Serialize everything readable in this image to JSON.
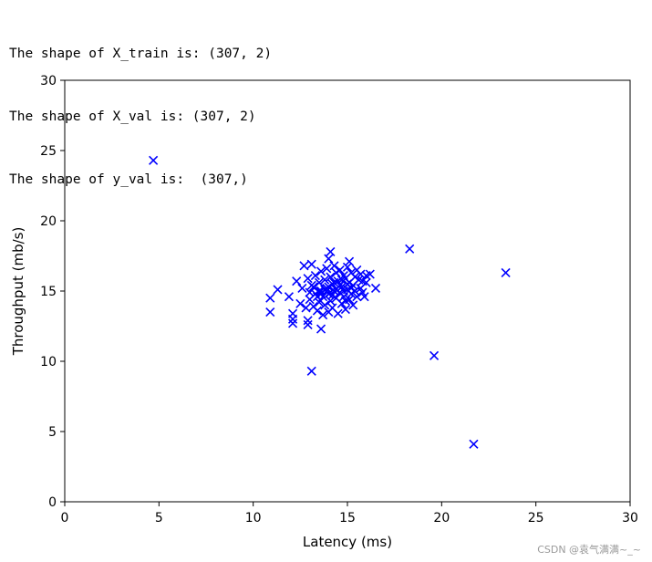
{
  "console": {
    "lines": [
      "The shape of X_train is: (307, 2)",
      "The shape of X_val is: (307, 2)",
      "The shape of y_val is:  (307,)"
    ]
  },
  "watermark": "CSDN @袁气满满~_~",
  "chart_data": {
    "type": "scatter",
    "title": "",
    "xlabel": "Latency (ms)",
    "ylabel": "Throughput (mb/s)",
    "xlim": [
      0,
      30
    ],
    "ylim": [
      0,
      30
    ],
    "xticks": [
      0,
      5,
      10,
      15,
      20,
      25,
      30
    ],
    "yticks": [
      0,
      5,
      10,
      15,
      20,
      25,
      30
    ],
    "grid": false,
    "marker": "x",
    "color": "#0000ff",
    "points": [
      [
        4.7,
        24.3
      ],
      [
        18.3,
        18.0
      ],
      [
        23.4,
        16.3
      ],
      [
        19.6,
        10.4
      ],
      [
        21.7,
        4.1
      ],
      [
        13.1,
        9.3
      ],
      [
        10.9,
        14.5
      ],
      [
        10.9,
        13.5
      ],
      [
        11.3,
        15.1
      ],
      [
        12.1,
        13.4
      ],
      [
        12.1,
        12.7
      ],
      [
        12.1,
        13.0
      ],
      [
        12.9,
        12.6
      ],
      [
        12.9,
        12.9
      ],
      [
        13.6,
        12.3
      ],
      [
        12.7,
        16.8
      ],
      [
        13.1,
        16.9
      ],
      [
        14.1,
        17.8
      ],
      [
        14.0,
        17.3
      ],
      [
        15.1,
        17.1
      ],
      [
        16.5,
        15.2
      ],
      [
        16.2,
        16.2
      ],
      [
        16.0,
        15.6
      ],
      [
        15.9,
        14.6
      ],
      [
        11.9,
        14.6
      ],
      [
        12.3,
        15.7
      ],
      [
        12.5,
        14.1
      ],
      [
        12.6,
        15.2
      ],
      [
        12.8,
        13.8
      ],
      [
        12.9,
        15.9
      ],
      [
        13.0,
        14.4
      ],
      [
        13.1,
        15.4
      ],
      [
        13.2,
        13.9
      ],
      [
        13.3,
        16.1
      ],
      [
        13.3,
        14.8
      ],
      [
        13.4,
        13.6
      ],
      [
        13.5,
        15.6
      ],
      [
        13.5,
        14.2
      ],
      [
        13.6,
        16.4
      ],
      [
        13.6,
        15.0
      ],
      [
        13.7,
        13.3
      ],
      [
        13.7,
        14.6
      ],
      [
        13.8,
        15.8
      ],
      [
        13.8,
        14.0
      ],
      [
        13.9,
        16.6
      ],
      [
        13.9,
        15.2
      ],
      [
        14.0,
        13.5
      ],
      [
        14.0,
        14.8
      ],
      [
        14.1,
        16.0
      ],
      [
        14.1,
        14.3
      ],
      [
        14.2,
        15.5
      ],
      [
        14.2,
        13.8
      ],
      [
        14.3,
        16.8
      ],
      [
        14.3,
        15.0
      ],
      [
        14.4,
        14.5
      ],
      [
        14.4,
        16.3
      ],
      [
        14.5,
        13.4
      ],
      [
        14.5,
        15.7
      ],
      [
        14.6,
        14.9
      ],
      [
        14.6,
        16.5
      ],
      [
        14.7,
        14.1
      ],
      [
        14.7,
        15.3
      ],
      [
        14.8,
        16.1
      ],
      [
        14.8,
        14.6
      ],
      [
        14.9,
        15.9
      ],
      [
        14.9,
        13.7
      ],
      [
        15.0,
        15.1
      ],
      [
        15.0,
        16.7
      ],
      [
        15.1,
        14.4
      ],
      [
        15.1,
        15.6
      ],
      [
        15.2,
        16.3
      ],
      [
        15.2,
        14.8
      ],
      [
        15.3,
        15.4
      ],
      [
        15.3,
        14.0
      ],
      [
        15.4,
        16.0
      ],
      [
        15.4,
        15.0
      ],
      [
        15.5,
        16.5
      ],
      [
        15.5,
        14.6
      ],
      [
        15.6,
        15.8
      ],
      [
        15.7,
        15.2
      ],
      [
        15.7,
        16.2
      ],
      [
        15.8,
        14.9
      ],
      [
        15.8,
        15.7
      ],
      [
        16.0,
        16.1
      ],
      [
        13.0,
        14.9
      ],
      [
        13.2,
        15.3
      ],
      [
        13.4,
        14.6
      ],
      [
        13.6,
        14.8
      ],
      [
        13.8,
        15.1
      ],
      [
        14.0,
        15.3
      ],
      [
        14.2,
        14.7
      ],
      [
        14.4,
        15.1
      ],
      [
        14.6,
        15.4
      ],
      [
        14.8,
        15.0
      ],
      [
        15.0,
        15.5
      ],
      [
        15.2,
        15.2
      ],
      [
        13.9,
        15.0
      ],
      [
        14.3,
        15.6
      ],
      [
        14.7,
        15.8
      ],
      [
        14.1,
        14.9
      ],
      [
        13.5,
        15.0
      ],
      [
        14.9,
        14.3
      ]
    ]
  }
}
